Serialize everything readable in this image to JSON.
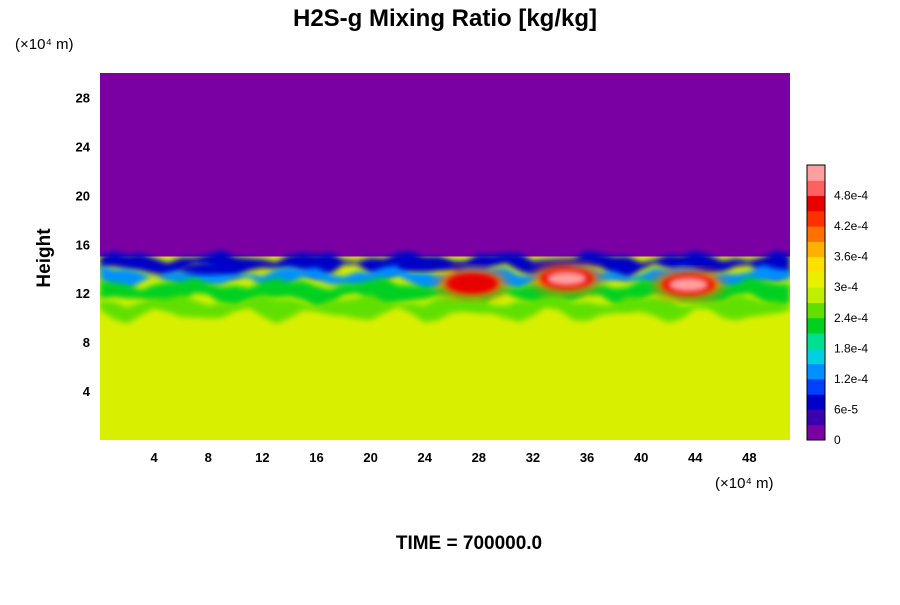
{
  "chart_data": {
    "type": "heatmap",
    "title": "H2S-g Mixing Ratio [kg/kg]",
    "ylabel": "Height",
    "y_unit": "(×10⁴ m)",
    "x_unit": "(×10⁴ m)",
    "xlim": [
      0,
      51
    ],
    "ylim": [
      0,
      30
    ],
    "x_ticks": [
      "4",
      "8",
      "12",
      "16",
      "20",
      "24",
      "28",
      "32",
      "36",
      "40",
      "44",
      "48"
    ],
    "y_ticks": [
      "4",
      "8",
      "12",
      "16",
      "20",
      "24",
      "28"
    ],
    "colorbar": {
      "range": [
        0,
        0.00052
      ],
      "labels": [
        "0",
        "6e-5",
        "1.2e-4",
        "1.8e-4",
        "2.4e-4",
        "3e-4",
        "3.6e-4",
        "4.2e-4",
        "4.8e-4"
      ],
      "colors": [
        "#7b00a4",
        "#3a00b0",
        "#0000c8",
        "#0040ff",
        "#0090ff",
        "#00d0e0",
        "#00e090",
        "#00d020",
        "#60e000",
        "#c0f000",
        "#e8f000",
        "#ffe000",
        "#ffb000",
        "#ff7000",
        "#ff3000",
        "#e80000",
        "#ff6060",
        "#ffa0a0"
      ]
    },
    "fields": {
      "background_lower": "#d8f000",
      "background_upper": "#7b00a4",
      "boundary_height": 15,
      "blobs": [
        {
          "x": 34.5,
          "y": 13.2,
          "value": 0.0005
        },
        {
          "x": 43.5,
          "y": 12.7,
          "value": 0.0005
        },
        {
          "x": 27.5,
          "y": 12.8,
          "value": 0.00045
        },
        {
          "x": 8,
          "y": 14,
          "value": 6e-05
        },
        {
          "x": 24,
          "y": 14.3,
          "value": 8e-05
        }
      ]
    },
    "footer": "TIME = 700000.0"
  }
}
